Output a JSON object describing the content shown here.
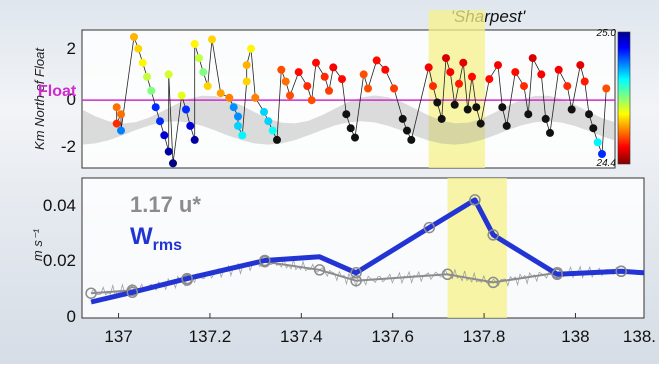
{
  "chart_data": [
    {
      "type": "scatter",
      "title": "'Sharpest'",
      "ylabel": "Km North of Float",
      "float_label": "Float",
      "yticks": [
        "2",
        "0",
        "-2"
      ],
      "ylim": [
        -2.9,
        3.0
      ],
      "xlim": [
        136.92,
        138.15
      ],
      "highlight_x": [
        137.72,
        137.85
      ],
      "colorbar": {
        "max_label": "25.0",
        "min_label": "24.4",
        "range": [
          24.4,
          25.0
        ]
      },
      "points": [
        [
          137.0,
          -0.3,
          24.86
        ],
        [
          137.01,
          -0.6,
          24.86
        ],
        [
          137.0,
          -1.0,
          24.9
        ],
        [
          137.01,
          -1.3,
          24.55
        ],
        [
          137.04,
          2.7,
          24.82
        ],
        [
          137.05,
          2.2,
          24.8
        ],
        [
          137.06,
          1.6,
          24.78
        ],
        [
          137.07,
          1.0,
          24.74
        ],
        [
          137.08,
          0.4,
          24.7
        ],
        [
          137.09,
          -0.3,
          24.5
        ],
        [
          137.1,
          -0.9,
          24.5
        ],
        [
          137.11,
          -1.5,
          24.45
        ],
        [
          137.12,
          -2.2,
          24.42
        ],
        [
          137.13,
          -2.7,
          24.4
        ],
        [
          137.12,
          1.1,
          24.75
        ],
        [
          137.15,
          0.2,
          24.76
        ],
        [
          137.16,
          -0.4,
          24.5
        ],
        [
          137.17,
          -1.1,
          24.45
        ],
        [
          137.18,
          -1.7,
          24.42
        ],
        [
          137.18,
          2.4,
          24.78
        ],
        [
          137.19,
          1.8,
          24.74
        ],
        [
          137.2,
          1.2,
          24.7
        ],
        [
          137.21,
          0.6,
          24.8
        ],
        [
          137.22,
          2.6,
          24.8
        ],
        [
          137.24,
          0.3,
          24.83
        ],
        [
          137.26,
          0.1,
          24.85
        ],
        [
          137.27,
          -0.3,
          24.56
        ],
        [
          137.28,
          -0.7,
          24.56
        ],
        [
          137.28,
          -1.1,
          24.6
        ],
        [
          137.29,
          -1.5,
          24.62
        ],
        [
          137.3,
          0.8,
          24.8
        ],
        [
          137.3,
          1.5,
          24.82
        ],
        [
          137.31,
          2.2,
          24.78
        ],
        [
          137.32,
          0.1,
          24.85
        ],
        [
          137.34,
          -0.5,
          24.6
        ],
        [
          137.35,
          -0.9,
          24.6
        ],
        [
          137.36,
          -1.3,
          24.63
        ],
        [
          137.37,
          -1.7,
          24.66
        ],
        [
          137.38,
          1.3,
          24.88
        ],
        [
          137.39,
          0.8,
          24.86
        ],
        [
          137.4,
          0.2,
          24.88
        ],
        [
          137.42,
          1.2,
          24.92
        ],
        [
          137.44,
          0.6,
          24.9
        ],
        [
          137.45,
          0.0,
          24.88
        ],
        [
          137.46,
          1.6,
          24.92
        ],
        [
          137.48,
          1.0,
          24.9
        ],
        [
          137.49,
          0.4,
          24.89
        ],
        [
          137.5,
          1.4,
          24.93
        ],
        [
          137.52,
          0.9,
          24.92
        ],
        [
          137.53,
          -0.6,
          24.64
        ],
        [
          137.54,
          -1.2,
          24.64
        ],
        [
          137.55,
          -1.6,
          24.66
        ],
        [
          137.57,
          1.1,
          24.88
        ],
        [
          137.58,
          0.5,
          24.88
        ],
        [
          137.6,
          1.7,
          24.92
        ],
        [
          137.62,
          1.3,
          24.92
        ],
        [
          137.64,
          0.5,
          24.89
        ],
        [
          137.66,
          -0.8,
          24.66
        ],
        [
          137.67,
          -1.3,
          24.66
        ],
        [
          137.68,
          -1.7,
          24.67
        ],
        [
          137.72,
          1.4,
          24.93
        ],
        [
          137.73,
          0.6,
          24.9
        ],
        [
          137.74,
          -0.1,
          24.7
        ],
        [
          137.75,
          -0.8,
          24.67
        ],
        [
          137.76,
          1.8,
          24.95
        ],
        [
          137.77,
          1.2,
          24.93
        ],
        [
          137.78,
          -0.2,
          24.72
        ],
        [
          137.79,
          0.7,
          24.91
        ],
        [
          137.8,
          1.6,
          24.94
        ],
        [
          137.81,
          -0.4,
          24.7
        ],
        [
          137.82,
          1.0,
          24.92
        ],
        [
          137.83,
          -0.3,
          24.71
        ],
        [
          137.84,
          -1.0,
          24.68
        ],
        [
          137.86,
          0.9,
          24.92
        ],
        [
          137.88,
          1.5,
          24.93
        ],
        [
          137.89,
          -0.3,
          24.71
        ],
        [
          137.9,
          -1.1,
          24.68
        ],
        [
          137.92,
          1.2,
          24.92
        ],
        [
          137.94,
          0.6,
          24.9
        ],
        [
          137.95,
          -0.6,
          24.7
        ],
        [
          137.96,
          1.8,
          24.95
        ],
        [
          137.98,
          1.1,
          24.93
        ],
        [
          137.99,
          -0.8,
          24.68
        ],
        [
          138.0,
          -1.4,
          24.66
        ],
        [
          138.02,
          1.3,
          24.93
        ],
        [
          138.04,
          0.6,
          24.9
        ],
        [
          138.05,
          -0.4,
          24.7
        ],
        [
          138.07,
          1.5,
          24.94
        ],
        [
          138.08,
          0.8,
          24.91
        ],
        [
          138.09,
          -0.6,
          24.66
        ],
        [
          138.1,
          -1.2,
          24.65
        ],
        [
          138.11,
          -1.8,
          24.62
        ],
        [
          138.12,
          -2.3,
          24.5
        ],
        [
          138.13,
          0.5,
          24.88
        ]
      ]
    },
    {
      "type": "line",
      "ylabel": "m s⁻¹",
      "yticks": [
        "0.04",
        "0.02",
        "0"
      ],
      "xticks": [
        "137",
        "137.2",
        "137.4",
        "137.6",
        "137.8",
        "138",
        "138."
      ],
      "ylim": [
        0,
        0.048
      ],
      "xlim": [
        136.92,
        138.15
      ],
      "highlight_x": [
        137.72,
        137.85
      ],
      "legend_location": "upper-left",
      "series": [
        {
          "name": "1.17 u*",
          "color": "#8c8c8c",
          "x": [
            136.94,
            137.03,
            137.15,
            137.32,
            137.44,
            137.52,
            137.72,
            137.82,
            137.96,
            138.1
          ],
          "y": [
            0.0085,
            0.0095,
            0.013,
            0.0193,
            0.0165,
            0.0128,
            0.015,
            0.0122,
            0.0155,
            0.016
          ]
        },
        {
          "name": "Wrms",
          "color": "#2234d4",
          "x": [
            136.94,
            137.03,
            137.15,
            137.32,
            137.44,
            137.52,
            137.68,
            137.78,
            137.82,
            137.96,
            138.1,
            138.15
          ],
          "y": [
            0.0055,
            0.0088,
            0.0135,
            0.0197,
            0.021,
            0.0155,
            0.031,
            0.0405,
            0.0285,
            0.015,
            0.016,
            0.0155
          ]
        }
      ]
    }
  ]
}
